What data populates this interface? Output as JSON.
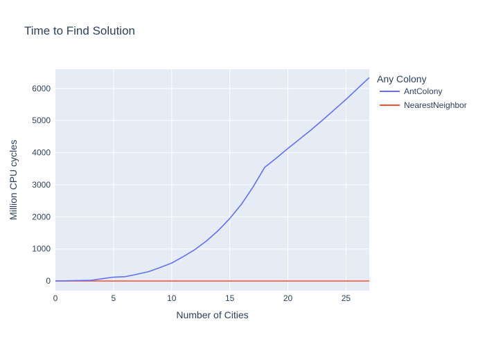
{
  "chart_data": {
    "type": "line",
    "title": "Time to Find Solution",
    "xlabel": "Number of Cities",
    "ylabel": "Million CPU cycles",
    "xlim": [
      0,
      27
    ],
    "ylim": [
      -300,
      6600
    ],
    "xticks": [
      0,
      5,
      10,
      15,
      20,
      25
    ],
    "yticks": [
      0,
      1000,
      2000,
      3000,
      4000,
      5000,
      6000
    ],
    "grid": true,
    "legend": {
      "title": "Any Colony",
      "position": "right"
    },
    "series": [
      {
        "name": "AntColony",
        "color": "#636efa",
        "x": [
          0,
          1,
          2,
          3,
          4,
          5,
          6,
          7,
          8,
          9,
          10,
          11,
          12,
          13,
          14,
          15,
          16,
          17,
          18,
          19,
          20,
          21,
          22,
          23,
          24,
          25,
          26,
          27
        ],
        "y": [
          0,
          5,
          15,
          20,
          70,
          120,
          135,
          210,
          290,
          420,
          560,
          760,
          980,
          1250,
          1570,
          1950,
          2390,
          2930,
          3540,
          3830,
          4130,
          4420,
          4710,
          5020,
          5340,
          5660,
          6000,
          6340
        ]
      },
      {
        "name": "NearestNeighbor",
        "color": "#ef553b",
        "x": [
          0,
          1,
          2,
          3,
          4,
          5,
          6,
          7,
          8,
          9,
          10,
          11,
          12,
          13,
          14,
          15,
          16,
          17,
          18,
          19,
          20,
          21,
          22,
          23,
          24,
          25,
          26,
          27
        ],
        "y": [
          0,
          0,
          0,
          0,
          0,
          0,
          0,
          0,
          0,
          0,
          0,
          0,
          0,
          0,
          0,
          0,
          0,
          0,
          0,
          0,
          0,
          0,
          0,
          0,
          0,
          0,
          0,
          0
        ]
      }
    ]
  }
}
